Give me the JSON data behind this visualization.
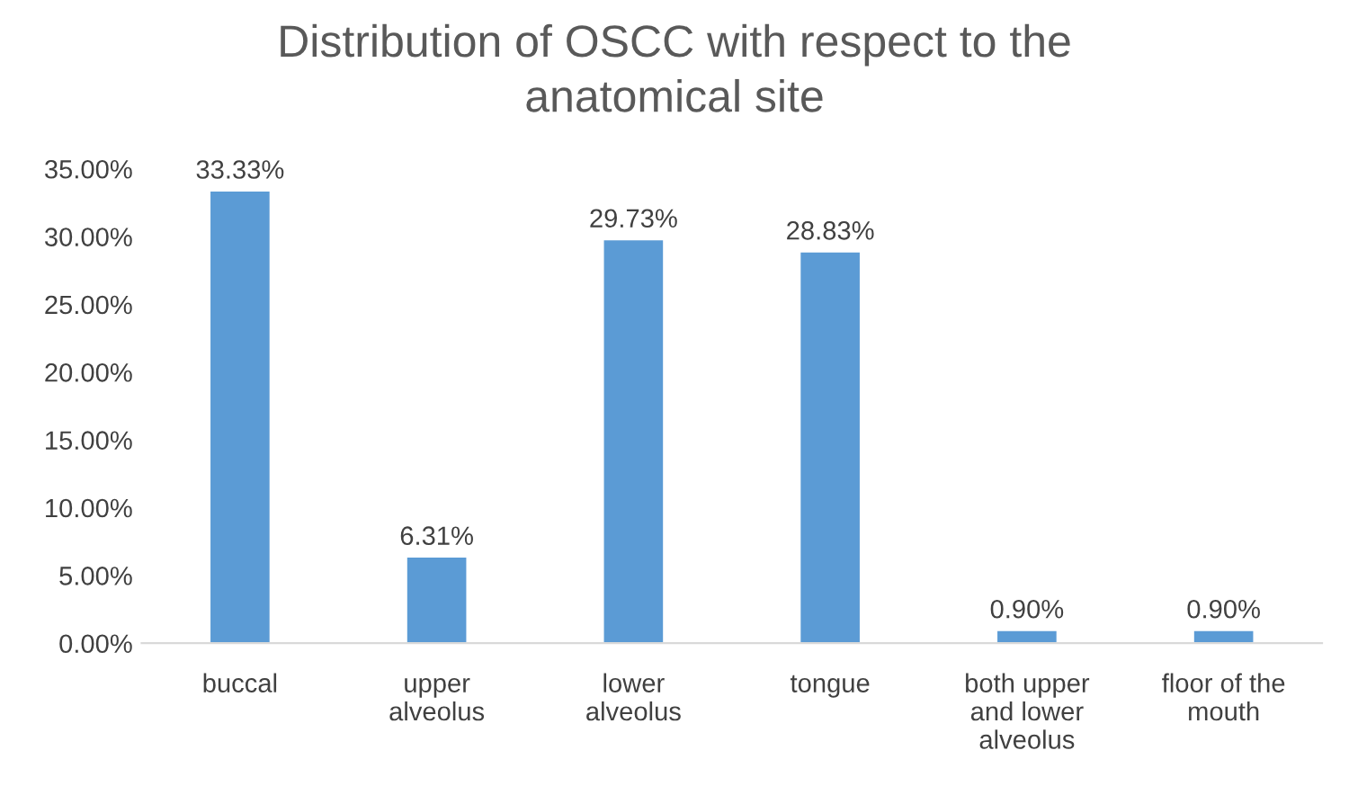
{
  "chart_data": {
    "type": "bar",
    "title": "Distribution of OSCC with respect to the\nanatomical site",
    "categories": [
      "buccal",
      "upper\nalveolus",
      "lower\nalveolus",
      "tongue",
      "both upper\nand lower\nalveolus",
      "floor of the\nmouth"
    ],
    "values": [
      33.33,
      6.31,
      29.73,
      28.83,
      0.9,
      0.9
    ],
    "value_labels": [
      "33.33%",
      "6.31%",
      "29.73%",
      "28.83%",
      "0.90%",
      "0.90%"
    ],
    "color": "#5b9bd5",
    "ylim": [
      0,
      35
    ],
    "yticks": [
      {
        "value": 0,
        "label": "0.00%"
      },
      {
        "value": 5,
        "label": "5.00%"
      },
      {
        "value": 10,
        "label": "10.00%"
      },
      {
        "value": 15,
        "label": "15.00%"
      },
      {
        "value": 20,
        "label": "20.00%"
      },
      {
        "value": 25,
        "label": "25.00%"
      },
      {
        "value": 30,
        "label": "30.00%"
      },
      {
        "value": 35,
        "label": "35.00%"
      }
    ],
    "grid": false
  }
}
